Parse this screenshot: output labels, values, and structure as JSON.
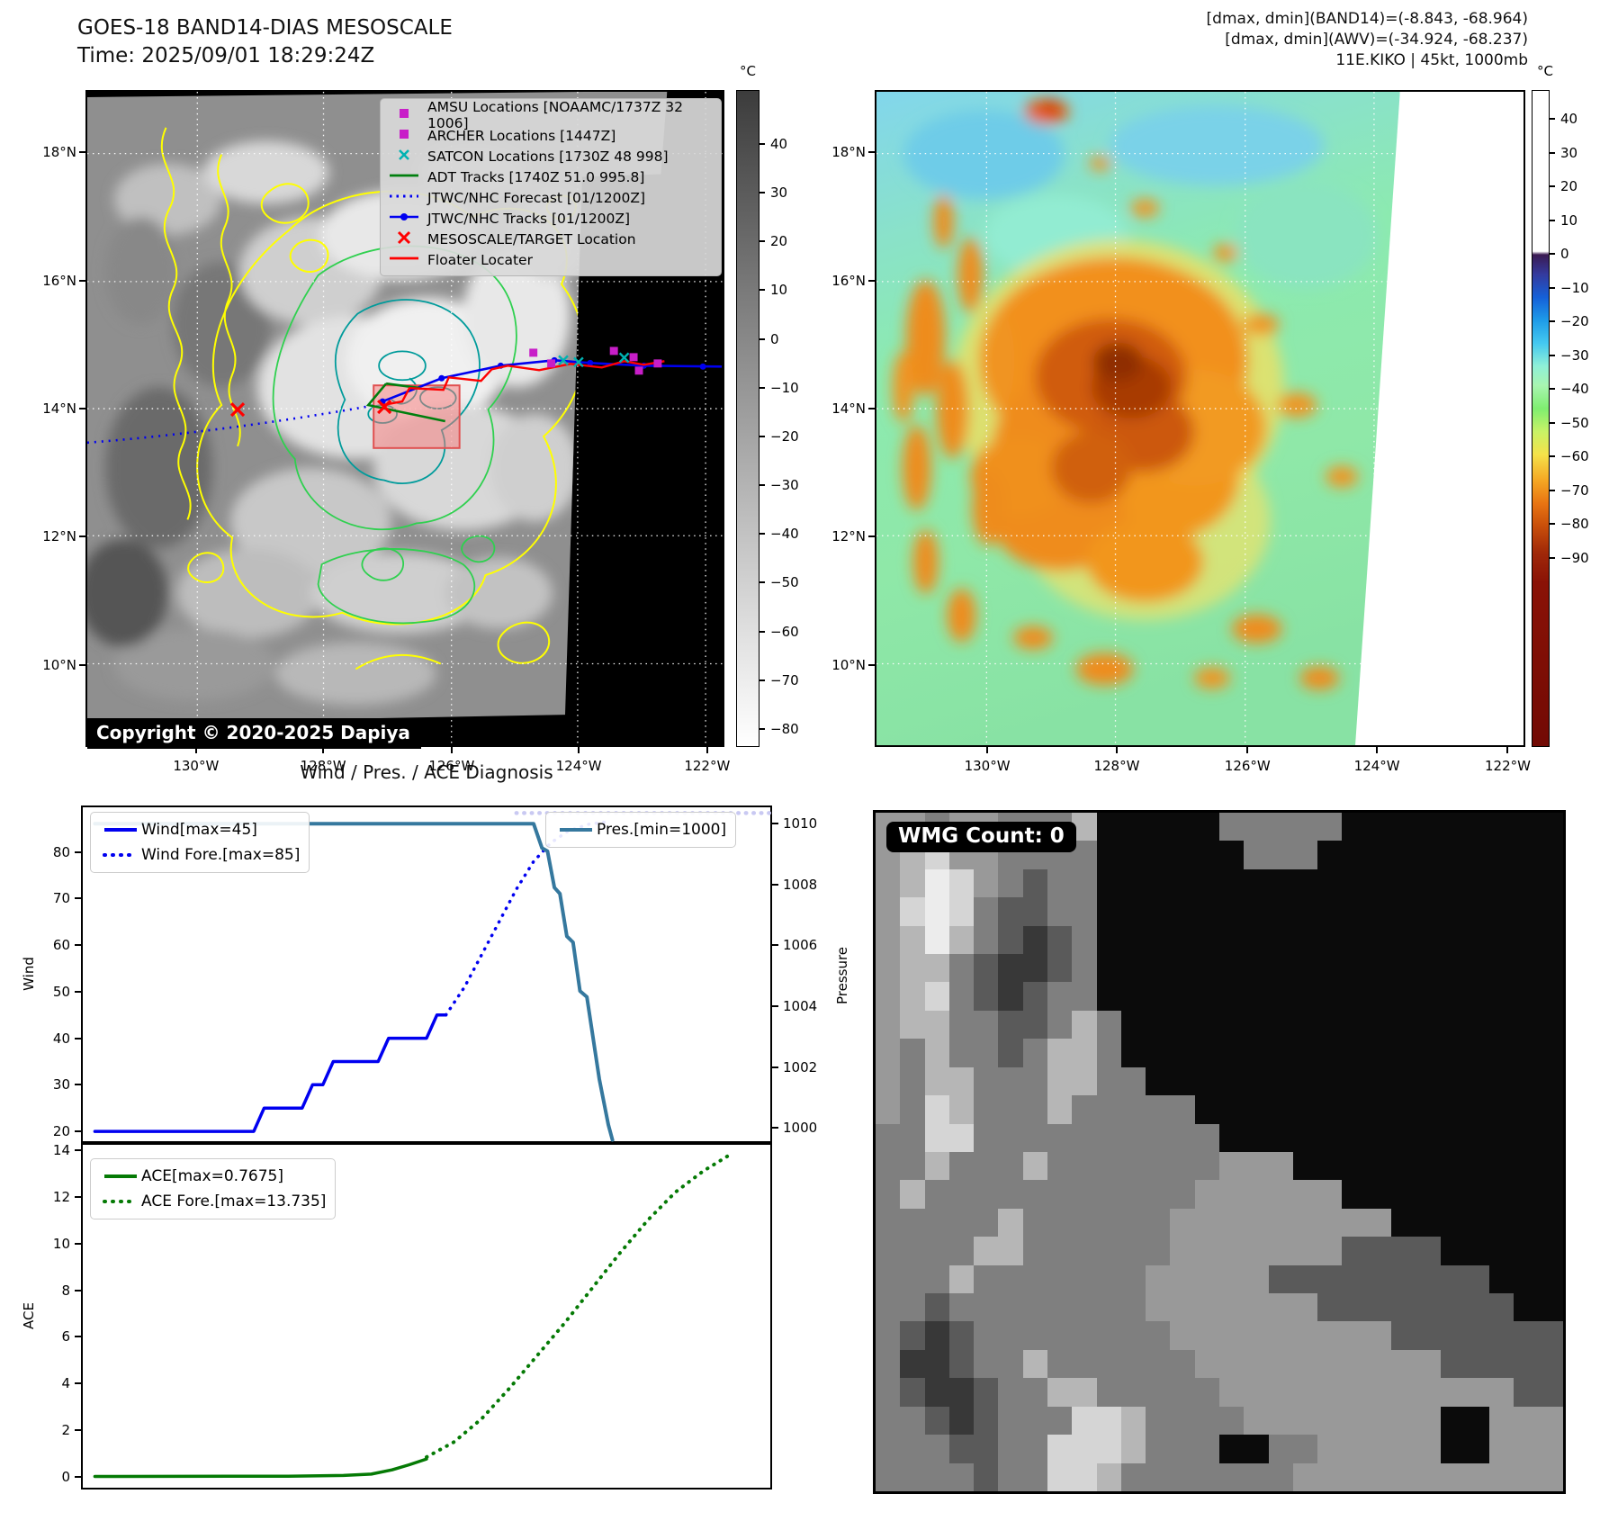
{
  "header_left": {
    "line1": "GOES-18 BAND14-DIAS MESOSCALE",
    "line2": "Time: 2025/09/01 18:29:24Z"
  },
  "header_right": {
    "line1": "[dmax, dmin](BAND14)=(-8.843, -68.964)",
    "line2": "[dmax, dmin](AWV)=(-34.924, -68.237)",
    "line3": "11E.KIKO | 45kt, 1000mb"
  },
  "band14_map": {
    "copyright": "Copyright © 2020-2025 Dapiya",
    "legend_items": [
      {
        "type": "square-magenta",
        "label": "AMSU Locations [NOAAMC/1737Z 32 1006]"
      },
      {
        "type": "square-magenta",
        "label": "ARCHER Locations [1447Z]"
      },
      {
        "type": "x-cyan",
        "label": "SATCON Locations [1730Z 48 998]"
      },
      {
        "type": "line-green",
        "label": "ADT Tracks [1740Z 51.0 995.8]"
      },
      {
        "type": "dotted-blue",
        "label": "JTWC/NHC Forecast [01/1200Z]"
      },
      {
        "type": "line-dot-blue",
        "label": "JTWC/NHC Tracks [01/1200Z]"
      },
      {
        "type": "x-red",
        "label": "MESOSCALE/TARGET Location"
      },
      {
        "type": "line-red",
        "label": "Floater Locater"
      }
    ],
    "lat_ticks": [
      "18°N",
      "16°N",
      "14°N",
      "12°N",
      "10°N"
    ],
    "lon_ticks": [
      "130°W",
      "128°W",
      "126°W",
      "124°W",
      "122°W"
    ],
    "colorbar": {
      "unit": "°C",
      "ticks": [
        "40",
        "30",
        "20",
        "10",
        "0",
        "−10",
        "−20",
        "−30",
        "−40",
        "−50",
        "−60",
        "−70",
        "−80"
      ]
    }
  },
  "awv_map": {
    "lat_ticks": [
      "18°N",
      "16°N",
      "14°N",
      "12°N",
      "10°N"
    ],
    "lon_ticks": [
      "130°W",
      "128°W",
      "126°W",
      "124°W",
      "122°W"
    ],
    "colorbar": {
      "unit": "°C",
      "ticks": [
        "40",
        "30",
        "20",
        "10",
        "0",
        "−10",
        "−20",
        "−30",
        "−40",
        "−50",
        "−60",
        "−70",
        "−80",
        "−90"
      ]
    }
  },
  "diagnosis": {
    "title": "Wind / Pres. / ACE Diagnosis"
  },
  "wmg": {
    "count_label": "WMG Count: 0",
    "palette": {
      "K": "#0b0b0b",
      "D": "#383838",
      "d": "#5a5a5a",
      "m": "#7f7f7f",
      "M": "#999999",
      "l": "#b6b6b6",
      "L": "#d5d5d5",
      "w": "#ececec"
    },
    "bitmap": [
      "MMmMMmmmlKKKKKmmmmmKKKKKKKKK",
      "MlLMMmmmmKKKKKKmmmKKKKKKKKKK",
      "MlwLMmdmmKKKKKKKKKKKKKKKKKKK",
      "MLwLmddmmKKKKKKKKKKKKKKKKKKK",
      "MlwlmdDdmKKKKKKKKKKKKKKKKKKK",
      "MllmdDDdmKKKKKKKKKKKKKKKKKKK",
      "MlLmdDdmmKKKKKKKKKKKKKKKKKKK",
      "MllmmddmlmKKKKKKKKKKKKKKKKKK",
      "MmlmmdmllmKKKKKKKKKKKKKKKKKK",
      "MmllmmmllmmKKKKKKKKKKKKKKKKK",
      "MmLlmmmlmmmmmKKKKKKKKKKKKKKK",
      "mmLLmmmmmmmmmmKKKKKKKKKKKKKK",
      "mmlmmmlmmmmmmmMMMKKKKKKKKKKK",
      "mlmmmmmmmmmmmMMMMMMKKKKKKKKK",
      "mmmmmlmmmmmmMMMMMMMMMKKKKKKK",
      "mmmmllmmmmmmMMMMMMMddddKKKKK",
      "mmmlmmmmmmmMMMMMdddddddddKKK",
      "mmdmmmmmmmmMMMMMMMddddddddKK",
      "mdDdmmmmmmmmMMMMMMMMMddddddd",
      "mDDdmmlmmmmmmMMMMMMMMMMddddd",
      "mdDDdmmllmmmmmMMMMMMMMMMMMdd",
      "mmdDdmmmLLlmmmmMMMMMMMMKKMMM",
      "mmmddmmLLLlmmmKKmmMMMMMKKMMM",
      "mmmmdmmLLlmmmmmmmMMMMMMMMMMM"
    ]
  },
  "chart_data": [
    {
      "type": "line",
      "title": "Wind / Pres. / ACE Diagnosis",
      "ylabel_left": "Wind",
      "ylabel_right": "Pressure",
      "ylim_left": [
        17.5,
        90
      ],
      "ylim_right": [
        999.5,
        1010.6
      ],
      "yticks_left": [
        20,
        30,
        40,
        50,
        60,
        70,
        80
      ],
      "yticks_right": [
        1000,
        1002,
        1004,
        1006,
        1008,
        1010
      ],
      "xticks_visible": false,
      "grid": false,
      "legend_position": {
        "wind": "upper left",
        "pres": "upper right"
      },
      "series": [
        {
          "name": "Wind[max=45]",
          "axis": "left",
          "style": "solid",
          "color": "#0000f0",
          "width": 3.5,
          "x": [
            0.02,
            0.25,
            0.265,
            0.32,
            0.335,
            0.35,
            0.365,
            0.43,
            0.445,
            0.5,
            0.515,
            0.528
          ],
          "y": [
            20,
            20,
            25,
            25,
            30,
            30,
            35,
            35,
            40,
            40,
            45,
            45
          ]
        },
        {
          "name": "Wind Fore.[max=85]",
          "axis": "left",
          "style": "dotted",
          "color": "#0000f0",
          "width": 3.5,
          "x": [
            0.528,
            0.555,
            0.58,
            0.605,
            0.63,
            0.655,
            0.68,
            0.705,
            0.735,
            0.762
          ],
          "y": [
            45,
            51,
            58,
            65,
            72,
            78,
            82,
            84.5,
            86,
            86.5
          ]
        },
        {
          "name": "Pres.[min=1000]",
          "axis": "right",
          "style": "solid",
          "color": "#35789e",
          "width": 4,
          "x": [
            0.02,
            0.655,
            0.667,
            0.675,
            0.685,
            0.693,
            0.703,
            0.712,
            0.722,
            0.732,
            0.75,
            0.763,
            0.769
          ],
          "y": [
            1010,
            1010,
            1009.2,
            1009.1,
            1007.9,
            1007.7,
            1006.3,
            1006.1,
            1004.5,
            1004.3,
            1001.6,
            1000.1,
            999.6
          ]
        },
        {
          "name": "Pres. Fore.",
          "axis": "right",
          "style": "dotted",
          "color": "#c9c9f2",
          "width": 4.5,
          "x": [
            0.63,
            1.0
          ],
          "y": [
            1010.35,
            1010.35
          ]
        }
      ]
    },
    {
      "type": "line",
      "ylabel_left": "ACE",
      "ylim_left": [
        -0.54,
        14.31
      ],
      "yticks_left": [
        0,
        2,
        4,
        6,
        8,
        10,
        12,
        14
      ],
      "xticks_visible": false,
      "grid": false,
      "legend_position": {
        "ace": "upper left"
      },
      "series": [
        {
          "name": "ACE[max=0.7675]",
          "axis": "left",
          "style": "solid",
          "color": "#057a05",
          "width": 3.5,
          "x": [
            0.02,
            0.3,
            0.38,
            0.42,
            0.45,
            0.475,
            0.5
          ],
          "y": [
            0.02,
            0.03,
            0.06,
            0.12,
            0.3,
            0.52,
            0.7675
          ]
        },
        {
          "name": "ACE Fore.[max=13.735]",
          "axis": "left",
          "style": "dotted",
          "color": "#057a05",
          "width": 4,
          "x": [
            0.5,
            0.54,
            0.58,
            0.62,
            0.66,
            0.7,
            0.74,
            0.78,
            0.82,
            0.86,
            0.9,
            0.935
          ],
          "y": [
            0.85,
            1.5,
            2.5,
            3.8,
            5.2,
            6.6,
            8.1,
            9.6,
            11.0,
            12.2,
            13.1,
            13.735
          ]
        }
      ]
    }
  ]
}
